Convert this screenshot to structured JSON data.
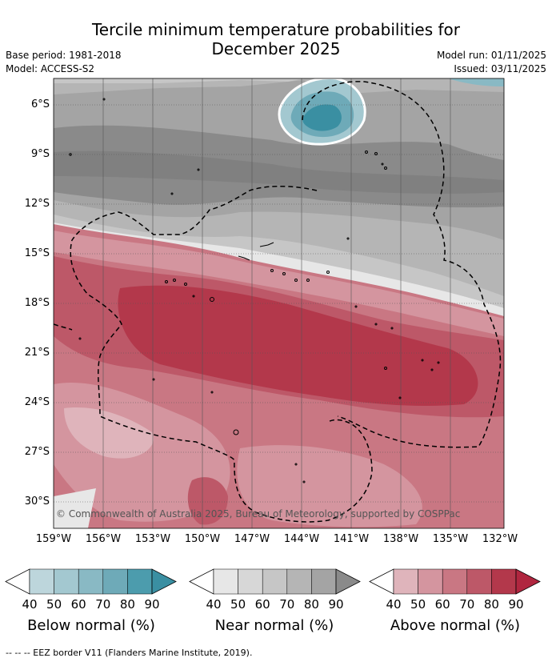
{
  "title_line1": "Tercile minimum temperature probabilities for",
  "title_line2": "December 2025",
  "base_period": "Base period: 1981-2018",
  "model": "Model: ACCESS-S2",
  "model_run": "Model run: 01/11/2025",
  "issued": "Issued: 03/11/2025",
  "copyright": "© Commonwealth of Australia 2025, Bureau of Meteorology, supported by COSPPac",
  "lat_labels": [
    "6°S",
    "9°S",
    "12°S",
    "15°S",
    "18°S",
    "21°S",
    "24°S",
    "27°S",
    "30°S"
  ],
  "lon_labels": [
    "159°W",
    "156°W",
    "153°W",
    "150°W",
    "147°W",
    "144°W",
    "141°W",
    "138°W",
    "135°W",
    "132°W"
  ],
  "colorbars": [
    {
      "label": "Below normal (%)",
      "ticks": [
        "40",
        "50",
        "60",
        "70",
        "80",
        "90"
      ],
      "colors": [
        "#bdd6dc",
        "#a3c8d0",
        "#89b9c4",
        "#6eaab8",
        "#4c9cad"
      ],
      "arrow": "#3a8fa2"
    },
    {
      "label": "Near normal (%)",
      "ticks": [
        "40",
        "50",
        "60",
        "70",
        "80",
        "90"
      ],
      "colors": [
        "#e7e7e7",
        "#d7d7d7",
        "#c6c6c6",
        "#b5b5b5",
        "#a4a4a4"
      ],
      "arrow": "#8a8a8a"
    },
    {
      "label": "Above normal (%)",
      "ticks": [
        "40",
        "50",
        "60",
        "70",
        "80",
        "90"
      ],
      "colors": [
        "#dfb4bb",
        "#d4959f",
        "#c97783",
        "#bd5868",
        "#b3384b"
      ],
      "arrow": "#b0263f"
    }
  ],
  "footer": "--  --  -- EEZ border V11 (Flanders Marine Institute, 2019)."
}
